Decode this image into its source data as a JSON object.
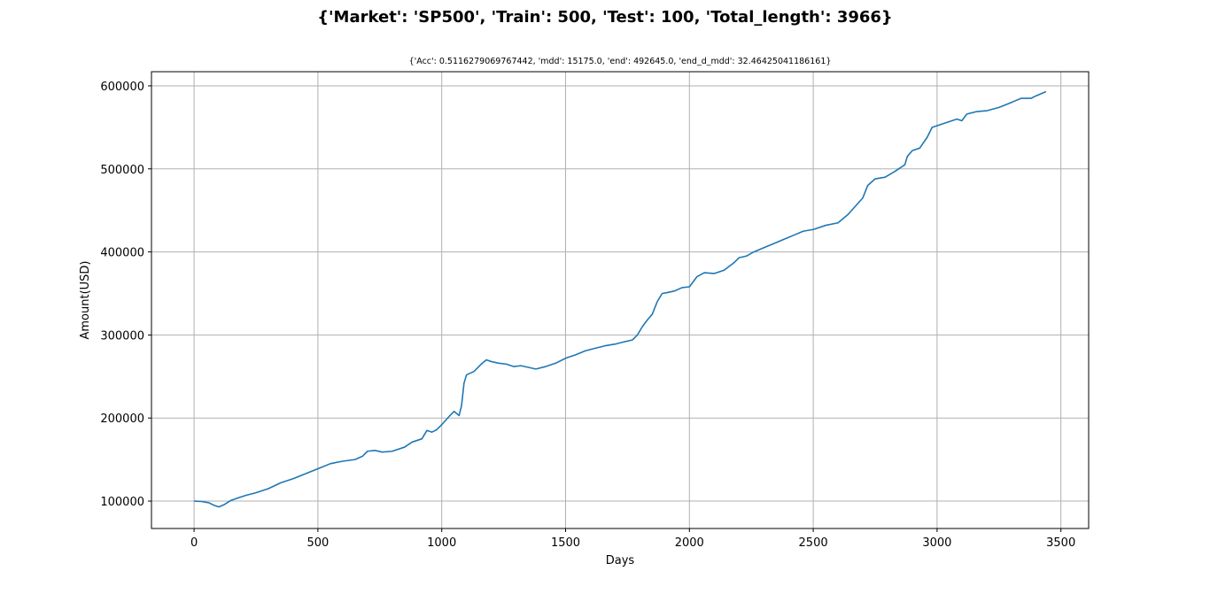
{
  "figure": {
    "suptitle": "{'Market': 'SP500', 'Train': 500, 'Test': 100, 'Total_length': 3966}"
  },
  "colors": {
    "line": "#1f77b4",
    "grid": "#b0b0b0",
    "axes": "#000000",
    "background": "#ffffff"
  },
  "chart_data": {
    "type": "line",
    "title": "{'Acc': 0.5116279069767442, 'mdd': 15175.0, 'end': 492645.0, 'end_d_mdd': 32.46425041186161}",
    "xlabel": "Days",
    "ylabel": "Amount(USD)",
    "xlim": [
      -172,
      3612
    ],
    "ylim": [
      67000,
      617000
    ],
    "grid": true,
    "xticks": [
      0,
      500,
      1000,
      1500,
      2000,
      2500,
      3000,
      3500
    ],
    "xtick_labels": [
      "0",
      "500",
      "1000",
      "1500",
      "2000",
      "2500",
      "3000",
      "3500"
    ],
    "yticks": [
      100000,
      200000,
      300000,
      400000,
      500000,
      600000
    ],
    "ytick_labels": [
      "100000",
      "200000",
      "300000",
      "400000",
      "500000",
      "600000"
    ],
    "series": [
      {
        "x": [
          0,
          30,
          60,
          80,
          100,
          120,
          150,
          180,
          210,
          250,
          300,
          350,
          400,
          450,
          500,
          550,
          600,
          650,
          680,
          700,
          730,
          760,
          800,
          850,
          880,
          920,
          940,
          960,
          980,
          1000,
          1030,
          1050,
          1070,
          1080,
          1090,
          1100,
          1130,
          1160,
          1180,
          1200,
          1230,
          1260,
          1290,
          1320,
          1350,
          1380,
          1420,
          1460,
          1500,
          1540,
          1580,
          1620,
          1660,
          1700,
          1740,
          1770,
          1790,
          1810,
          1830,
          1850,
          1870,
          1890,
          1910,
          1940,
          1970,
          2000,
          2030,
          2060,
          2100,
          2140,
          2180,
          2200,
          2230,
          2260,
          2300,
          2340,
          2380,
          2420,
          2460,
          2500,
          2550,
          2600,
          2640,
          2670,
          2700,
          2720,
          2750,
          2790,
          2830,
          2870,
          2880,
          2900,
          2930,
          2960,
          2980,
          3000,
          3040,
          3080,
          3100,
          3120,
          3160,
          3200,
          3250,
          3300,
          3340,
          3380,
          3400,
          3440
        ],
        "y": [
          100000,
          99500,
          98000,
          95000,
          93000,
          95500,
          101000,
          104000,
          107000,
          110000,
          115000,
          122000,
          127000,
          133000,
          139000,
          145000,
          148000,
          150000,
          154000,
          160000,
          161000,
          159000,
          160000,
          165000,
          171000,
          175000,
          185000,
          183000,
          186000,
          192000,
          202000,
          208000,
          203000,
          215000,
          242000,
          252000,
          256000,
          265000,
          270000,
          268000,
          266000,
          265000,
          262000,
          263000,
          261000,
          259000,
          262000,
          266000,
          272000,
          276000,
          281000,
          284000,
          287000,
          289000,
          292000,
          294000,
          300000,
          310000,
          318000,
          325000,
          340000,
          350000,
          351000,
          353000,
          357000,
          358000,
          370000,
          375000,
          374000,
          378000,
          387000,
          393000,
          395000,
          400000,
          405000,
          410000,
          415000,
          420000,
          425000,
          427000,
          432000,
          435000,
          445000,
          455000,
          465000,
          480000,
          488000,
          490000,
          497000,
          505000,
          515000,
          522000,
          525000,
          538000,
          550000,
          552000,
          556000,
          560000,
          558000,
          566000,
          569000,
          570000,
          574000,
          580000,
          585000,
          585000,
          588000,
          593000
        ]
      }
    ]
  }
}
